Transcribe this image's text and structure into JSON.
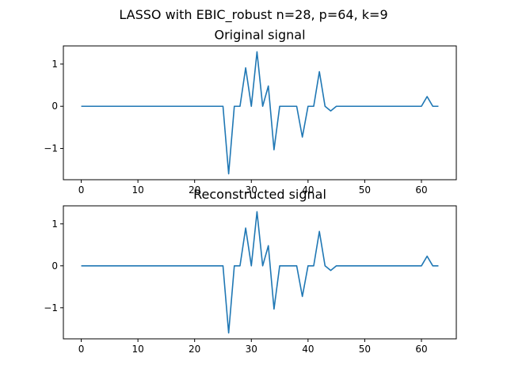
{
  "figure": {
    "suptitle": "LASSO with EBIC_robust n=28, p=64, k=9"
  },
  "colors": {
    "series": "#1f77b4",
    "background": "#ffffff",
    "axes": "#000000"
  },
  "chart_data": [
    {
      "type": "line",
      "title": "Original signal",
      "xlabel": "",
      "ylabel": "",
      "xlim": [
        -3.15,
        66.15
      ],
      "ylim": [
        -1.74,
        1.43
      ],
      "xticks": [
        0,
        10,
        20,
        30,
        40,
        50,
        60
      ],
      "yticks": [
        -1,
        0,
        1
      ],
      "xtick_labels": [
        "0",
        "10",
        "20",
        "30",
        "40",
        "50",
        "60"
      ],
      "ytick_labels": [
        "−1",
        "0",
        "1"
      ],
      "grid": false,
      "series": [
        {
          "x": [
            0,
            1,
            2,
            3,
            4,
            5,
            6,
            7,
            8,
            9,
            10,
            11,
            12,
            13,
            14,
            15,
            16,
            17,
            18,
            19,
            20,
            21,
            22,
            23,
            24,
            25,
            26,
            27,
            28,
            29,
            30,
            31,
            32,
            33,
            34,
            35,
            36,
            37,
            38,
            39,
            40,
            41,
            42,
            43,
            44,
            45,
            46,
            47,
            48,
            49,
            50,
            51,
            52,
            53,
            54,
            55,
            56,
            57,
            58,
            59,
            60,
            61,
            62,
            63
          ],
          "y": [
            0,
            0,
            0,
            0,
            0,
            0,
            0,
            0,
            0,
            0,
            0,
            0,
            0,
            0,
            0,
            0,
            0,
            0,
            0,
            0,
            0,
            0,
            0,
            0,
            0,
            0,
            -1.6,
            0,
            0,
            0.91,
            0,
            1.29,
            0,
            0.48,
            -1.03,
            0,
            0,
            0,
            0,
            -0.73,
            0,
            0,
            0.82,
            0,
            -0.11,
            0,
            0,
            0,
            0,
            0,
            0,
            0,
            0,
            0,
            0,
            0,
            0,
            0,
            0,
            0,
            0,
            0.23,
            0,
            0
          ]
        }
      ]
    },
    {
      "type": "line",
      "title": "Reconstructed signal",
      "xlabel": "",
      "ylabel": "",
      "xlim": [
        -3.15,
        66.15
      ],
      "ylim": [
        -1.74,
        1.43
      ],
      "xticks": [
        0,
        10,
        20,
        30,
        40,
        50,
        60
      ],
      "yticks": [
        -1,
        0,
        1
      ],
      "xtick_labels": [
        "0",
        "10",
        "20",
        "30",
        "40",
        "50",
        "60"
      ],
      "ytick_labels": [
        "−1",
        "0",
        "1"
      ],
      "grid": false,
      "series": [
        {
          "x": [
            0,
            1,
            2,
            3,
            4,
            5,
            6,
            7,
            8,
            9,
            10,
            11,
            12,
            13,
            14,
            15,
            16,
            17,
            18,
            19,
            20,
            21,
            22,
            23,
            24,
            25,
            26,
            27,
            28,
            29,
            30,
            31,
            32,
            33,
            34,
            35,
            36,
            37,
            38,
            39,
            40,
            41,
            42,
            43,
            44,
            45,
            46,
            47,
            48,
            49,
            50,
            51,
            52,
            53,
            54,
            55,
            56,
            57,
            58,
            59,
            60,
            61,
            62,
            63
          ],
          "y": [
            0,
            0,
            0,
            0,
            0,
            0,
            0,
            0,
            0,
            0,
            0,
            0,
            0,
            0,
            0,
            0,
            0,
            0,
            0,
            0,
            0,
            0,
            0,
            0,
            0,
            0,
            -1.6,
            0,
            0,
            0.9,
            0,
            1.29,
            0,
            0.48,
            -1.03,
            0,
            0,
            0,
            0,
            -0.73,
            0,
            0,
            0.82,
            0,
            -0.11,
            0,
            0,
            0,
            0,
            0,
            0,
            0,
            0,
            0,
            0,
            0,
            0,
            0,
            0,
            0,
            0,
            0.23,
            0,
            0
          ]
        }
      ]
    }
  ]
}
